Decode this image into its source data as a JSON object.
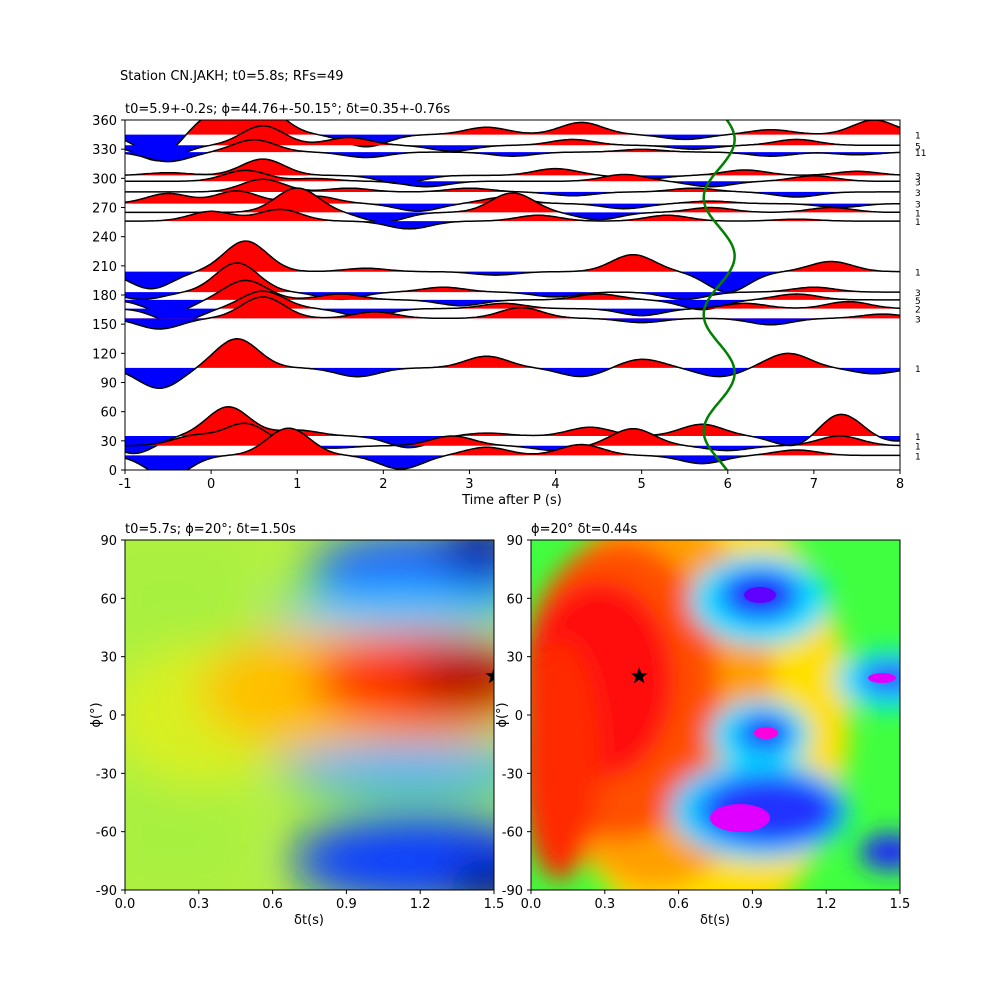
{
  "figure": {
    "title": "Station CN.JAKH; t0=5.8s; RFs=49"
  },
  "chart_data": [
    {
      "type": "line",
      "title": "t0=5.9+-0.2s; ϕ=44.76+-50.15°; δt=0.35+-0.76s",
      "xlabel": "Time after P (s)",
      "ylabel": "",
      "xlim": [
        -1,
        8
      ],
      "ylim": [
        0,
        360
      ],
      "xticks": [
        -1,
        0,
        1,
        2,
        3,
        4,
        5,
        6,
        7,
        8
      ],
      "yticks": [
        0,
        30,
        60,
        90,
        120,
        150,
        180,
        210,
        240,
        270,
        300,
        330,
        360
      ],
      "grid": false,
      "positive_fill_color": "#ff0000",
      "negative_fill_color": "#0000ff",
      "trace_color": "#000000",
      "traces": [
        {
          "baz": 345,
          "count": "1",
          "amp": 25,
          "peaks": [
            [
              0.0,
              0.8
            ],
            [
              0.6,
              1.1
            ],
            [
              -0.6,
              -0.9
            ],
            [
              1.8,
              -0.5
            ],
            [
              3.2,
              0.3
            ],
            [
              4.3,
              0.5
            ],
            [
              5.5,
              -0.2
            ],
            [
              6.5,
              0.2
            ],
            [
              7.7,
              0.6
            ]
          ]
        },
        {
          "baz": 334,
          "count": "5",
          "amp": 20,
          "peaks": [
            [
              -0.6,
              -0.8
            ],
            [
              0.6,
              1.0
            ],
            [
              1.6,
              0.4
            ],
            [
              2.8,
              -0.3
            ],
            [
              4.2,
              0.3
            ],
            [
              5.6,
              -0.2
            ],
            [
              6.8,
              0.3
            ]
          ]
        },
        {
          "baz": 327,
          "count": "11",
          "amp": 14,
          "peaks": [
            [
              -0.5,
              -0.7
            ],
            [
              0.5,
              0.9
            ],
            [
              1.8,
              -0.4
            ],
            [
              3.5,
              -0.3
            ],
            [
              5.0,
              0.2
            ],
            [
              6.5,
              -0.3
            ],
            [
              7.5,
              -0.2
            ]
          ]
        },
        {
          "baz": 303,
          "count": "3",
          "amp": 14,
          "peaks": [
            [
              -0.5,
              0.2
            ],
            [
              0.6,
              1.2
            ],
            [
              2.2,
              -0.6
            ],
            [
              4.0,
              0.5
            ],
            [
              5.0,
              -0.3
            ],
            [
              6.2,
              0.4
            ],
            [
              7.5,
              0.3
            ]
          ]
        },
        {
          "baz": 297,
          "count": "3",
          "amp": 14,
          "peaks": [
            [
              0.4,
              0.8
            ],
            [
              1.2,
              0.2
            ],
            [
              2.5,
              -0.4
            ],
            [
              4.8,
              0.5
            ],
            [
              5.8,
              -0.4
            ],
            [
              7.0,
              0.4
            ]
          ]
        },
        {
          "baz": 286,
          "count": "3",
          "amp": 13,
          "peaks": [
            [
              0.6,
              1.0
            ],
            [
              1.6,
              0.3
            ],
            [
              3.0,
              0.3
            ],
            [
              4.2,
              -0.3
            ],
            [
              5.6,
              0.3
            ],
            [
              6.8,
              -0.4
            ]
          ]
        },
        {
          "baz": 274,
          "count": "3",
          "amp": 13,
          "peaks": [
            [
              -0.5,
              0.8
            ],
            [
              0.3,
              1.0
            ],
            [
              1.2,
              0.6
            ],
            [
              2.4,
              -0.6
            ],
            [
              3.4,
              0.5
            ],
            [
              4.8,
              -0.4
            ],
            [
              5.8,
              0.2
            ],
            [
              7.3,
              -0.3
            ]
          ]
        },
        {
          "baz": 265,
          "count": "1",
          "amp": 25,
          "peaks": [
            [
              1.0,
              1.0
            ],
            [
              2.0,
              -0.4
            ],
            [
              3.5,
              0.8
            ],
            [
              4.5,
              -0.3
            ],
            [
              5.8,
              0.2
            ],
            [
              7.2,
              0.2
            ]
          ]
        },
        {
          "baz": 256,
          "count": "1",
          "amp": 20,
          "peaks": [
            [
              0.0,
              0.5
            ],
            [
              0.8,
              0.6
            ],
            [
              2.3,
              -0.4
            ],
            [
              3.8,
              0.3
            ],
            [
              5.3,
              0.3
            ],
            [
              6.8,
              0.1
            ]
          ]
        },
        {
          "baz": 204,
          "count": "1",
          "amp": 35,
          "peaks": [
            [
              -0.7,
              -0.5
            ],
            [
              0.4,
              0.9
            ],
            [
              1.8,
              0.1
            ],
            [
              3.3,
              -0.1
            ],
            [
              4.9,
              0.5
            ],
            [
              6.0,
              -0.6
            ],
            [
              7.2,
              0.3
            ]
          ]
        },
        {
          "baz": 183,
          "count": "3",
          "amp": 25,
          "peaks": [
            [
              -0.8,
              -0.3
            ],
            [
              0.3,
              1.2
            ],
            [
              1.5,
              -0.3
            ],
            [
              2.7,
              0.2
            ],
            [
              4.0,
              -0.2
            ],
            [
              5.5,
              -0.3
            ],
            [
              7.0,
              0.2
            ]
          ]
        },
        {
          "baz": 175,
          "count": "5",
          "amp": 20,
          "peaks": [
            [
              -0.5,
              -0.7
            ],
            [
              0.4,
              1.0
            ],
            [
              1.5,
              0.3
            ],
            [
              2.9,
              -0.3
            ],
            [
              4.5,
              0.3
            ],
            [
              5.7,
              -0.5
            ],
            [
              6.8,
              0.3
            ]
          ]
        },
        {
          "baz": 166,
          "count": "2",
          "amp": 18,
          "peaks": [
            [
              -0.4,
              -0.8
            ],
            [
              0.6,
              1.0
            ],
            [
              1.8,
              -0.5
            ],
            [
              3.4,
              0.3
            ],
            [
              5.0,
              -0.4
            ],
            [
              6.2,
              0.3
            ],
            [
              7.4,
              0.4
            ]
          ]
        },
        {
          "baz": 156,
          "count": "3",
          "amp": 22,
          "peaks": [
            [
              -0.6,
              -0.5
            ],
            [
              0.6,
              1.0
            ],
            [
              1.9,
              0.3
            ],
            [
              3.6,
              0.5
            ],
            [
              5.0,
              -0.2
            ],
            [
              6.5,
              -0.3
            ],
            [
              7.8,
              0.2
            ]
          ]
        },
        {
          "baz": 105,
          "count": "1",
          "amp": 30,
          "peaks": [
            [
              -0.6,
              -0.7
            ],
            [
              0.3,
              1.0
            ],
            [
              1.7,
              -0.3
            ],
            [
              3.2,
              0.4
            ],
            [
              4.3,
              -0.3
            ],
            [
              5.0,
              0.3
            ],
            [
              5.9,
              -0.3
            ],
            [
              6.7,
              0.5
            ],
            [
              7.7,
              -0.2
            ]
          ]
        },
        {
          "baz": 35,
          "count": "1",
          "amp": 30,
          "peaks": [
            [
              -0.9,
              -0.6
            ],
            [
              0.2,
              1.0
            ],
            [
              1.0,
              0.2
            ],
            [
              2.3,
              -0.4
            ],
            [
              3.2,
              0.1
            ],
            [
              4.4,
              0.3
            ],
            [
              5.7,
              0.4
            ],
            [
              6.8,
              -0.4
            ],
            [
              7.3,
              0.8
            ],
            [
              7.9,
              -0.2
            ]
          ]
        },
        {
          "baz": 25,
          "count": "1",
          "amp": 25,
          "peaks": [
            [
              -0.2,
              0.4
            ],
            [
              0.4,
              0.9
            ],
            [
              1.4,
              -0.1
            ],
            [
              2.8,
              0.4
            ],
            [
              4.0,
              -0.2
            ],
            [
              4.9,
              0.7
            ],
            [
              6.0,
              -0.2
            ],
            [
              7.3,
              0.4
            ]
          ]
        },
        {
          "baz": 15,
          "count": "1",
          "amp": 28,
          "peaks": [
            [
              -0.5,
              -0.8
            ],
            [
              0.9,
              1.0
            ],
            [
              2.2,
              -0.5
            ],
            [
              3.2,
              0.3
            ],
            [
              4.3,
              0.4
            ],
            [
              5.7,
              -0.3
            ],
            [
              6.8,
              0.2
            ]
          ]
        }
      ],
      "t0_curve": {
        "color": "#008000",
        "center": 5.9,
        "amplitude": 0.18,
        "period_deg": 120,
        "phase_deg": 50
      }
    },
    {
      "type": "heatmap",
      "title": "t0=5.7s; ϕ=20°; δt=1.50s",
      "xlabel": "δt(s)",
      "ylabel": "ϕ(°)",
      "xlim": [
        0.0,
        1.5
      ],
      "ylim": [
        -90,
        90
      ],
      "xticks": [
        "0.0",
        "0.3",
        "0.6",
        "0.9",
        "1.2",
        "1.5"
      ],
      "yticks": [
        -90,
        -60,
        -30,
        0,
        30,
        60,
        90
      ],
      "colormap": "hsv",
      "best": {
        "phi": 20,
        "dt": 1.5
      },
      "marker": "star"
    },
    {
      "type": "heatmap",
      "title": "ϕ=20° δt=0.44s",
      "xlabel": "δt(s)",
      "ylabel": "ϕ(°)",
      "xlim": [
        0.0,
        1.5
      ],
      "ylim": [
        -90,
        90
      ],
      "xticks": [
        "0.0",
        "0.3",
        "0.6",
        "0.9",
        "1.2",
        "1.5"
      ],
      "yticks": [
        -90,
        -60,
        -30,
        0,
        30,
        60,
        90
      ],
      "colormap": "hsv",
      "best": {
        "phi": 20,
        "dt": 0.44
      },
      "marker": "star"
    }
  ]
}
